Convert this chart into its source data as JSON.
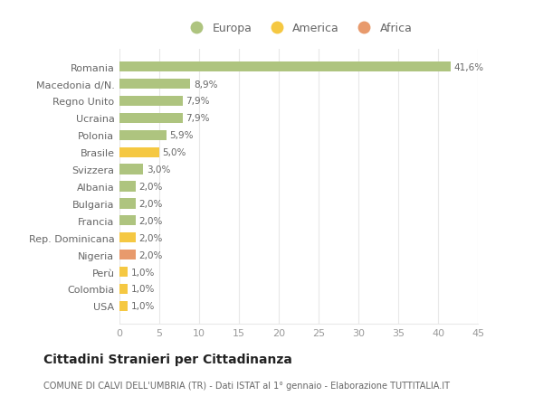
{
  "countries": [
    "Romania",
    "Macedonia d/N.",
    "Regno Unito",
    "Ucraina",
    "Polonia",
    "Brasile",
    "Svizzera",
    "Albania",
    "Bulgaria",
    "Francia",
    "Rep. Dominicana",
    "Nigeria",
    "Perù",
    "Colombia",
    "USA"
  ],
  "values": [
    41.6,
    8.9,
    7.9,
    7.9,
    5.9,
    5.0,
    3.0,
    2.0,
    2.0,
    2.0,
    2.0,
    2.0,
    1.0,
    1.0,
    1.0
  ],
  "labels": [
    "41,6%",
    "8,9%",
    "7,9%",
    "7,9%",
    "5,9%",
    "5,0%",
    "3,0%",
    "2,0%",
    "2,0%",
    "2,0%",
    "2,0%",
    "2,0%",
    "1,0%",
    "1,0%",
    "1,0%"
  ],
  "categories": [
    "Europa",
    "Europa",
    "Europa",
    "Europa",
    "Europa",
    "America",
    "Europa",
    "Europa",
    "Europa",
    "Europa",
    "America",
    "Africa",
    "America",
    "America",
    "America"
  ],
  "colors": {
    "Europa": "#aec47f",
    "America": "#f5c842",
    "Africa": "#e89a6c"
  },
  "legend_items": [
    {
      "label": "Europa",
      "color": "#aec47f"
    },
    {
      "label": "America",
      "color": "#f5c842"
    },
    {
      "label": "Africa",
      "color": "#e89a6c"
    }
  ],
  "title": "Cittadini Stranieri per Cittadinanza",
  "subtitle": "COMUNE DI CALVI DELL'UMBRIA (TR) - Dati ISTAT al 1° gennaio - Elaborazione TUTTITALIA.IT",
  "xlim": [
    0,
    45
  ],
  "xticks": [
    0,
    5,
    10,
    15,
    20,
    25,
    30,
    35,
    40,
    45
  ],
  "bg_color": "#ffffff",
  "grid_color": "#e8e8e8",
  "label_color": "#666666",
  "tick_color": "#999999"
}
